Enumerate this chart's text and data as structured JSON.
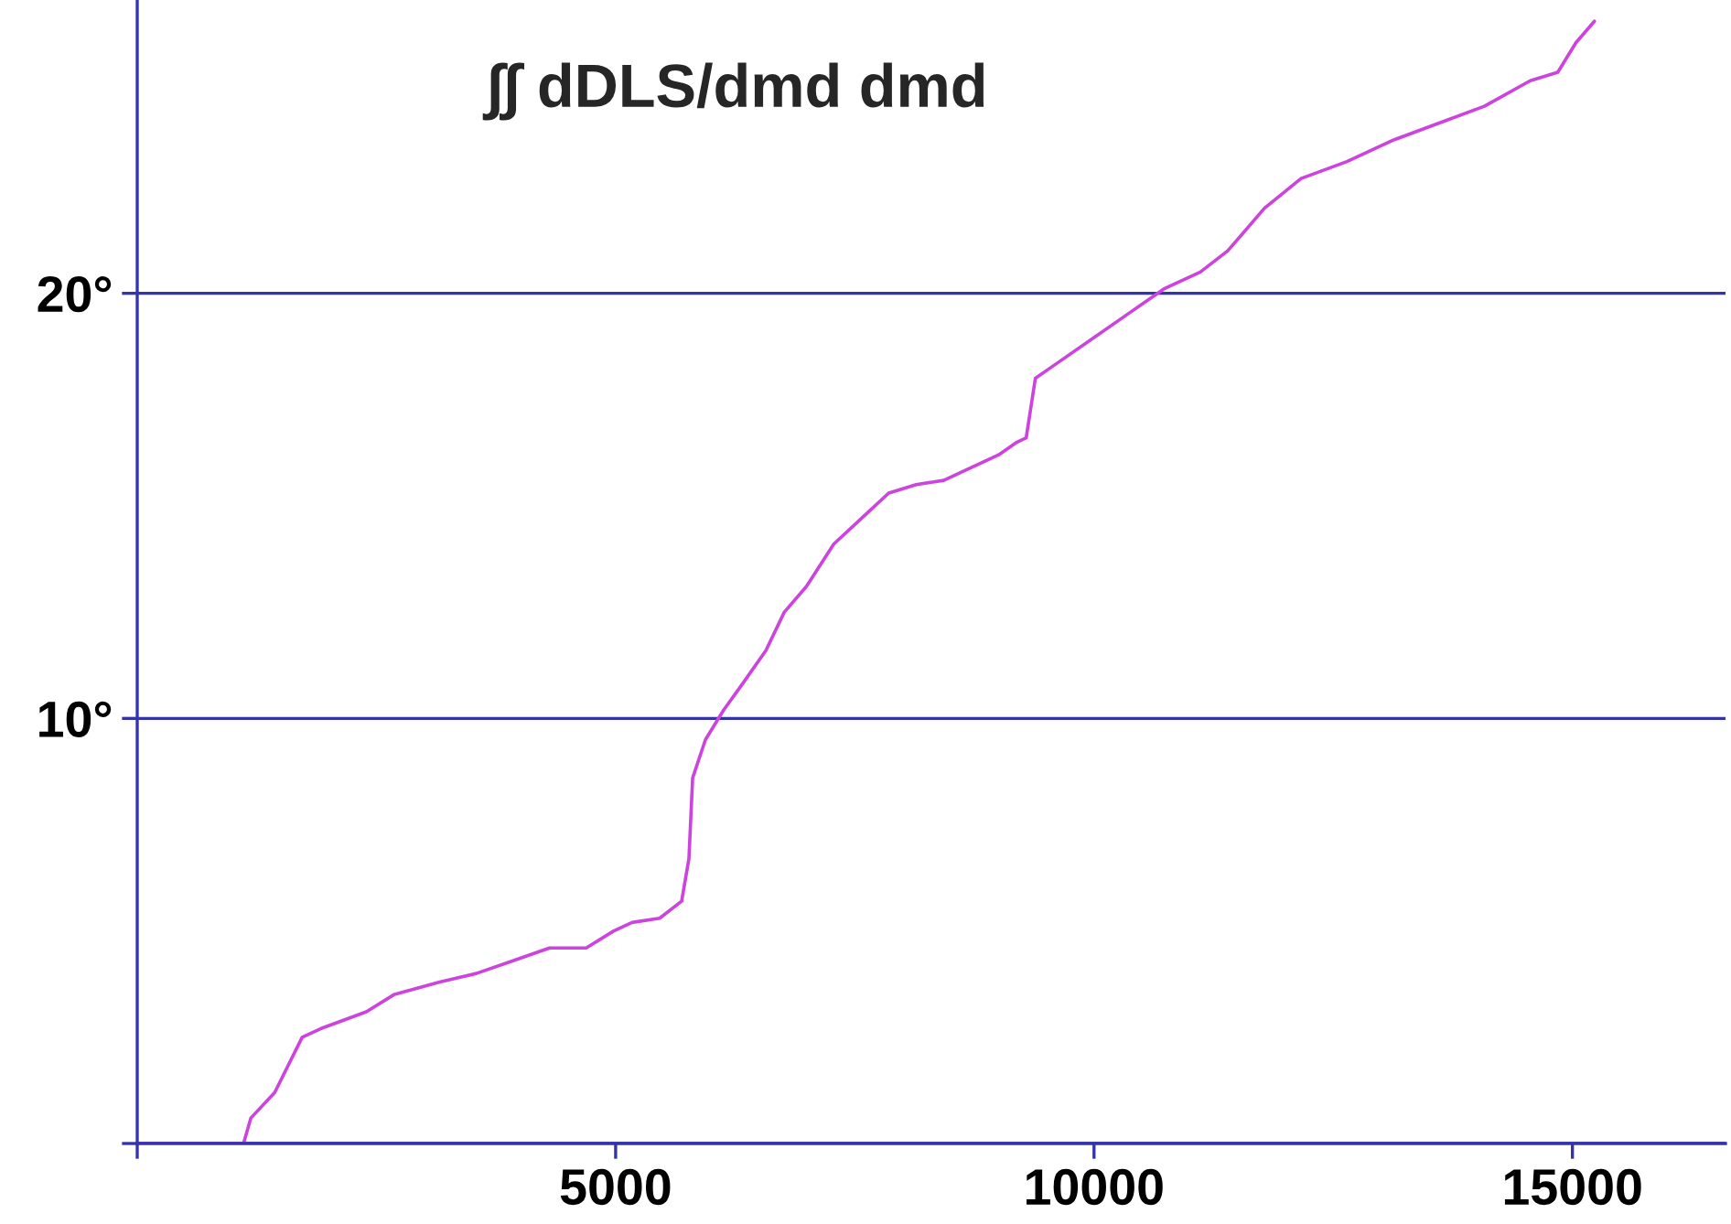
{
  "chart_data": {
    "type": "line",
    "title": "∫∫ dDLS/dmd dmd",
    "series": [
      {
        "color": "#cc44dd",
        "x": [
          0,
          1111,
          1188,
          1437,
          1724,
          1916,
          2395,
          2682,
          3161,
          3544,
          3927,
          4310,
          4693,
          4981,
          5172,
          5460,
          5690,
          5766,
          5805,
          5939,
          6130,
          6322,
          6571,
          6763,
          6993,
          7280,
          7567,
          7854,
          8142,
          8429,
          8716,
          9004,
          9195,
          9291,
          9387,
          9578,
          9962,
          10345,
          10728,
          11111,
          11398,
          11781,
          12164,
          12643,
          13122,
          13601,
          14080,
          14559,
          14847,
          15038,
          15230
        ],
        "values": [
          0,
          0,
          0.6,
          1.2,
          2.5,
          2.7,
          3.1,
          3.5,
          3.8,
          4.0,
          4.3,
          4.6,
          4.6,
          5.0,
          5.2,
          5.3,
          5.7,
          6.7,
          8.6,
          9.5,
          10.2,
          10.8,
          11.6,
          12.5,
          13.1,
          14.1,
          14.7,
          15.3,
          15.5,
          15.6,
          15.9,
          16.2,
          16.5,
          16.6,
          18.0,
          18.3,
          18.9,
          19.5,
          20.1,
          20.5,
          21.0,
          22.0,
          22.7,
          23.1,
          23.6,
          24.0,
          24.4,
          25.0,
          25.2,
          25.9,
          26.4
        ]
      }
    ],
    "xlim": [
      0,
      16600
    ],
    "ylim": [
      0,
      26.9
    ],
    "xticks": [
      {
        "value": 0,
        "label": null
      },
      5000,
      10000,
      15000
    ],
    "yticks": [
      {
        "value": 0,
        "label": null
      },
      {
        "value": 10,
        "label": "10°"
      },
      {
        "value": 20,
        "label": "20°"
      }
    ],
    "grid": "y",
    "legend": false,
    "marker": "none",
    "line_style": "solid"
  }
}
